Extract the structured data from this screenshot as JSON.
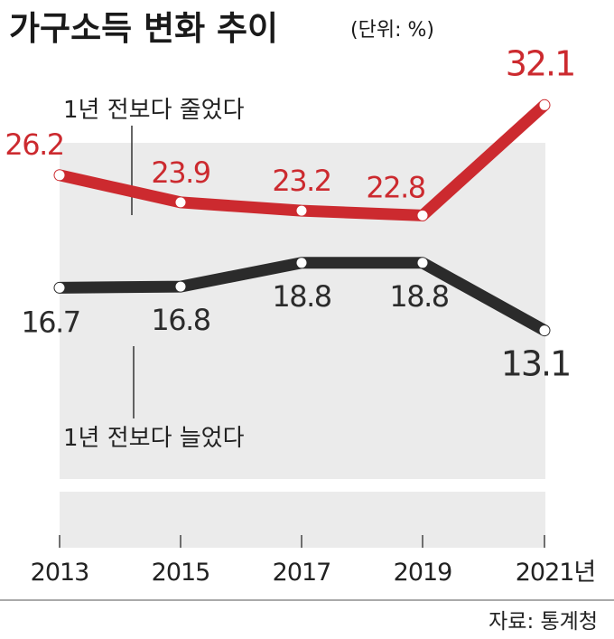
{
  "title": "가구소득 변화 추이",
  "unit_label": "(단위: %)",
  "source": "자료: 통계청",
  "annotations": {
    "decreased": "1년 전보다 줄었다",
    "increased": "1년 전보다 늘었다"
  },
  "colors": {
    "decreased_series": "#cc2a2f",
    "increased_series": "#2b2b2b",
    "background_band": "#ebebeb"
  },
  "chart_data": {
    "type": "line",
    "title": "가구소득 변화 추이",
    "unit": "%",
    "x": [
      "2013",
      "2015",
      "2017",
      "2019",
      "2021"
    ],
    "tick_labels": [
      "2013",
      "2015",
      "2017",
      "2019",
      "2021년"
    ],
    "series": [
      {
        "name": "1년 전보다 줄었다",
        "values": [
          26.2,
          23.9,
          23.2,
          22.8,
          32.1
        ],
        "labels": [
          "26.2",
          "23.9",
          "23.2",
          "22.8",
          "32.1"
        ],
        "color": "#cc2a2f"
      },
      {
        "name": "1년 전보다 늘었다",
        "values": [
          16.7,
          16.8,
          18.8,
          18.8,
          13.1
        ],
        "labels": [
          "16.7",
          "16.8",
          "18.8",
          "18.8",
          "13.1"
        ],
        "color": "#2b2b2b"
      }
    ],
    "grid": false,
    "legend": "inline annotations"
  }
}
